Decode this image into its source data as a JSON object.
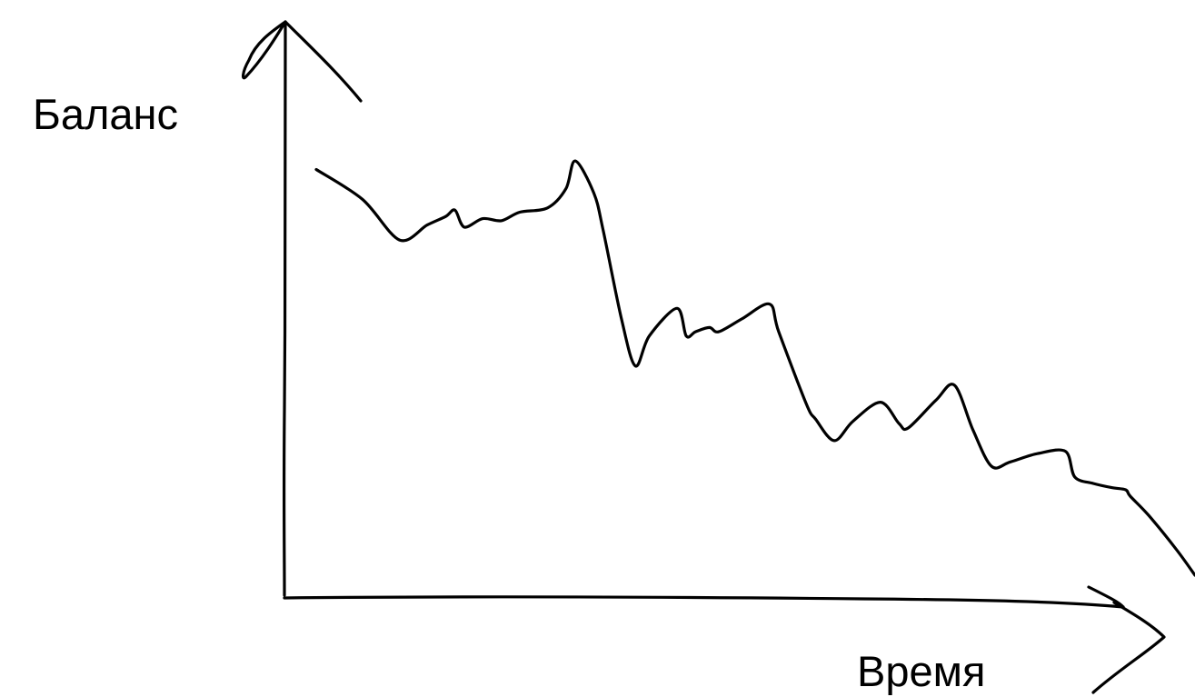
{
  "chart_data": {
    "type": "line",
    "title": "",
    "ylabel": "Баланс",
    "xlabel": "Время",
    "grid": false,
    "ticks": false,
    "line_color": "#000000",
    "background": "#ffffff",
    "series": [
      {
        "points": [
          [
            0.0,
            0.95
          ],
          [
            0.5,
            0.88
          ],
          [
            0.9,
            0.785
          ],
          [
            1.2,
            0.82
          ],
          [
            1.4,
            0.84
          ],
          [
            1.5,
            0.855
          ],
          [
            1.6,
            0.815
          ],
          [
            1.8,
            0.835
          ],
          [
            2.0,
            0.83
          ],
          [
            2.2,
            0.85
          ],
          [
            2.5,
            0.86
          ],
          [
            2.7,
            0.905
          ],
          [
            2.8,
            0.97
          ],
          [
            3.0,
            0.895
          ],
          [
            3.1,
            0.81
          ],
          [
            3.3,
            0.6
          ],
          [
            3.45,
            0.49
          ],
          [
            3.6,
            0.56
          ],
          [
            3.9,
            0.625
          ],
          [
            4.0,
            0.56
          ],
          [
            4.1,
            0.57
          ],
          [
            4.25,
            0.58
          ],
          [
            4.35,
            0.57
          ],
          [
            4.6,
            0.6
          ],
          [
            4.9,
            0.635
          ],
          [
            5.0,
            0.57
          ],
          [
            5.3,
            0.4
          ],
          [
            5.4,
            0.365
          ],
          [
            5.6,
            0.315
          ],
          [
            5.8,
            0.36
          ],
          [
            6.1,
            0.405
          ],
          [
            6.3,
            0.355
          ],
          [
            6.4,
            0.345
          ],
          [
            6.7,
            0.41
          ],
          [
            6.9,
            0.445
          ],
          [
            7.1,
            0.34
          ],
          [
            7.3,
            0.255
          ],
          [
            7.5,
            0.265
          ],
          [
            7.8,
            0.285
          ],
          [
            8.1,
            0.29
          ],
          [
            8.2,
            0.23
          ],
          [
            8.4,
            0.215
          ],
          [
            8.6,
            0.205
          ],
          [
            8.75,
            0.2
          ],
          [
            8.8,
            0.185
          ],
          [
            9.0,
            0.14
          ],
          [
            9.3,
            0.06
          ],
          [
            9.5,
            0.0
          ]
        ]
      }
    ]
  }
}
